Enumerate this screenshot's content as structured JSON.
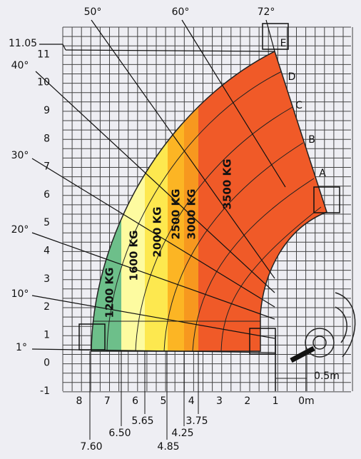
{
  "y_axis": {
    "labels": [
      "-1",
      "0",
      "1",
      "2",
      "3",
      "4",
      "5",
      "6",
      "7",
      "8",
      "9",
      "10",
      "11"
    ]
  },
  "x_axis": {
    "labels": [
      "8",
      "7",
      "6",
      "5",
      "4",
      "3",
      "2",
      "1",
      "0m"
    ]
  },
  "max_height": "11.05",
  "angles": [
    "1°",
    "10°",
    "20°",
    "30°",
    "40°",
    "50°",
    "60°",
    "72°"
  ],
  "loads": [
    "1200 KG",
    "1600 KG",
    "2000 KG",
    "2500 KG",
    "3000 KG",
    "3500 KG"
  ],
  "boom_positions": [
    "A",
    "B",
    "C",
    "D",
    "E"
  ],
  "reach_labels": [
    "7.60",
    "6.50",
    "5.65",
    "4.85",
    "4.25",
    "3.75"
  ],
  "scale": "0.5m"
}
